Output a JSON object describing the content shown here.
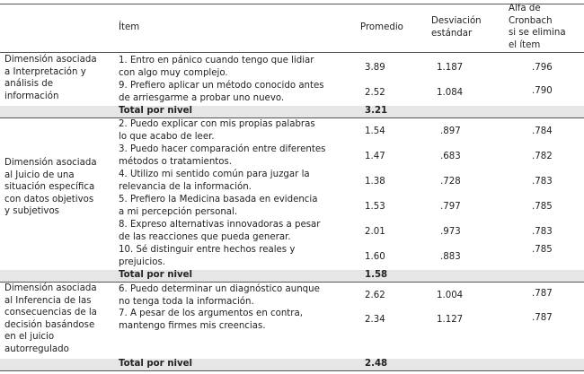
{
  "header": {
    "item": "Ítem",
    "promedio": "Promedio",
    "desviacion": "Desviación\nestándar",
    "alfa": "Alfa de\nCronbach\nsi se elimina\nel ítem"
  },
  "groups": [
    {
      "dimension": "Dimensión asociada\na Interpretación y\nanálisis de\ninformación",
      "items": [
        {
          "text": "1. Entro en pánico cuando tengo que lidiar\ncon algo muy complejo.",
          "promedio": "3.89",
          "desviacion": "1.187",
          "alfa": ".796"
        },
        {
          "text": "9. Prefiero aplicar un método conocido antes\nde arriesgarme a probar uno nuevo.",
          "promedio": "2.52",
          "desviacion": "1.084",
          "alfa": ".790"
        }
      ],
      "total_label": "Total por nivel",
      "total": "3.21"
    },
    {
      "dimension": "Dimensión asociada\nal Juicio de una\nsituación específica\ncon datos objetivos\ny subjetivos",
      "items": [
        {
          "text": "2. Puedo explicar con mis propias palabras\nlo que acabo de leer.",
          "promedio": "1.54",
          "desviacion": ".897",
          "alfa": ".784"
        },
        {
          "text": "3. Puedo hacer comparación entre diferentes\nmétodos o tratamientos.",
          "promedio": "1.47",
          "desviacion": ".683",
          "alfa": ".782"
        },
        {
          "text": "4. Utilizo mi sentido común para juzgar la\nrelevancia de la información.",
          "promedio": "1.38",
          "desviacion": ".728",
          "alfa": ".783"
        },
        {
          "text": "5. Prefiero la Medicina basada en evidencia\na mi percepción personal.",
          "promedio": "1.53",
          "desviacion": ".797",
          "alfa": ".785"
        },
        {
          "text": "8. Expreso alternativas innovadoras a pesar\nde las reacciones que pueda generar.",
          "promedio": "2.01",
          "desviacion": ".973",
          "alfa": ".783"
        },
        {
          "text": "10. Sé distinguir entre hechos reales y\nprejuicios.",
          "promedio": "1.60",
          "desviacion": ".883",
          "alfa": ".785"
        }
      ],
      "total_label": "Total por nivel",
      "total": "1.58"
    },
    {
      "dimension": "Dimensión asociada\nal Inferencia de las\nconsecuencias de la\ndecisión basándose\nen el juicio\nautorregulado",
      "items": [
        {
          "text": "6. Puedo determinar un diagnóstico aunque\nno tenga toda la información.",
          "promedio": "2.62",
          "desviacion": "1.004",
          "alfa": ".787"
        },
        {
          "text": "7. A pesar de los argumentos en contra,\nmantengo firmes mis creencias.",
          "promedio": "2.34",
          "desviacion": "1.127",
          "alfa": ".787"
        }
      ],
      "total_label": "Total por nivel",
      "total": "2.48"
    }
  ]
}
